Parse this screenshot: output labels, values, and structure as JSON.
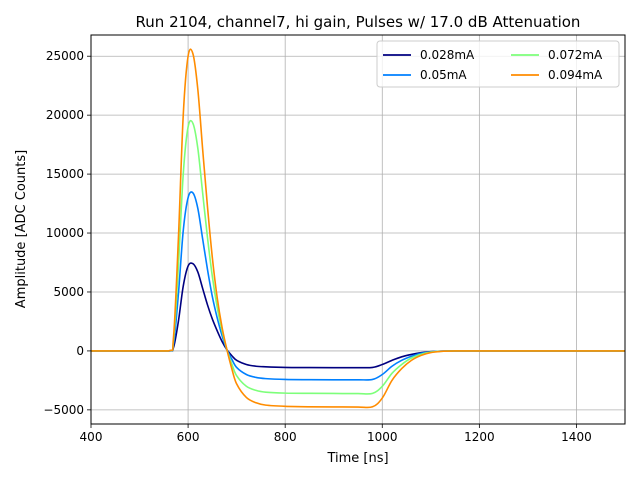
{
  "chart_data": {
    "type": "line",
    "title": "Run 2104, channel7, hi gain, Pulses w/ 17.0 dB Attenuation",
    "xlabel": "Time [ns]",
    "ylabel": "Amplitude [ADC Counts]",
    "xlim": [
      400,
      1500
    ],
    "ylim": [
      -6200,
      26800
    ],
    "xticks": [
      400,
      600,
      800,
      1000,
      1200,
      1400
    ],
    "yticks": [
      -5000,
      0,
      5000,
      10000,
      15000,
      20000,
      25000
    ],
    "xtick_labels": [
      "400",
      "600",
      "800",
      "1000",
      "1200",
      "1400"
    ],
    "ytick_labels": [
      "−5000",
      "0",
      "5000",
      "10000",
      "15000",
      "20000",
      "25000"
    ],
    "grid": true,
    "legend_placement": "top-right",
    "legend_columns": 2,
    "x": [
      400,
      500,
      560,
      570,
      580,
      590,
      600,
      610,
      620,
      630,
      640,
      650,
      660,
      670,
      680,
      690,
      700,
      720,
      740,
      760,
      800,
      850,
      900,
      950,
      980,
      1000,
      1020,
      1040,
      1060,
      1080,
      1100,
      1120,
      1150,
      1200,
      1300,
      1400,
      1500
    ],
    "series": [
      {
        "name": "0.028mA",
        "color": "#000080",
        "values": [
          0,
          0,
          0,
          300,
          2500,
          5500,
          7200,
          7400,
          6700,
          5300,
          3900,
          2700,
          1700,
          800,
          100,
          -400,
          -800,
          -1150,
          -1300,
          -1350,
          -1400,
          -1410,
          -1420,
          -1420,
          -1400,
          -1150,
          -800,
          -500,
          -300,
          -150,
          -60,
          -20,
          0,
          0,
          0,
          0,
          0
        ]
      },
      {
        "name": "0.05mA",
        "color": "#0080ff",
        "values": [
          0,
          0,
          0,
          600,
          4800,
          10200,
          13000,
          13400,
          12100,
          9500,
          6900,
          4600,
          2800,
          1300,
          100,
          -700,
          -1400,
          -2000,
          -2250,
          -2350,
          -2420,
          -2440,
          -2450,
          -2450,
          -2420,
          -2000,
          -1300,
          -800,
          -450,
          -200,
          -80,
          -25,
          0,
          0,
          0,
          0,
          0
        ]
      },
      {
        "name": "0.072mA",
        "color": "#7dff7a",
        "values": [
          0,
          0,
          0,
          900,
          7200,
          15000,
          19000,
          19300,
          17200,
          13400,
          9600,
          6300,
          3700,
          1700,
          100,
          -1100,
          -2100,
          -3000,
          -3350,
          -3500,
          -3580,
          -3600,
          -3610,
          -3620,
          -3600,
          -3000,
          -1900,
          -1150,
          -600,
          -280,
          -100,
          -30,
          0,
          0,
          0,
          0,
          0
        ]
      },
      {
        "name": "0.094mA",
        "color": "#ff8c00",
        "values": [
          0,
          0,
          0,
          1200,
          9500,
          20000,
          25000,
          25200,
          22200,
          17100,
          12200,
          7900,
          4500,
          2000,
          100,
          -1500,
          -2800,
          -3950,
          -4400,
          -4600,
          -4700,
          -4740,
          -4750,
          -4760,
          -4740,
          -4000,
          -2500,
          -1500,
          -800,
          -380,
          -140,
          -40,
          0,
          0,
          0,
          0,
          0
        ]
      }
    ]
  }
}
